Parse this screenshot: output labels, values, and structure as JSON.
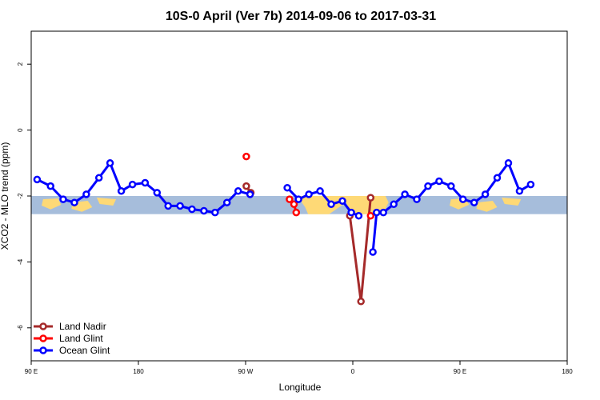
{
  "chart_data": {
    "type": "line",
    "title": "10S-0 April (Ver 7b)   2014-09-06 to 2017-03-31",
    "xlabel": "Longitude",
    "ylabel": "XCO2 - MLO trend (ppm)",
    "xlim": [
      90,
      450
    ],
    "ylim": [
      -7,
      3
    ],
    "x_ticks": [
      {
        "value": 90,
        "label": "90 E"
      },
      {
        "value": 162,
        "label": "180"
      },
      {
        "value": 234,
        "label": "90 W"
      },
      {
        "value": 306,
        "label": "0"
      },
      {
        "value": 378,
        "label": "90 E"
      },
      {
        "value": 450,
        "label": "180"
      }
    ],
    "y_ticks": [
      {
        "value": 2,
        "label": "2"
      },
      {
        "value": 0,
        "label": "0"
      },
      {
        "value": -2,
        "label": "-2"
      },
      {
        "value": -4,
        "label": "-4"
      },
      {
        "value": -6,
        "label": "-6"
      }
    ],
    "grid": false,
    "legend_position": "bottom-left",
    "map_band": {
      "y_range": [
        -2.55,
        -2.0
      ],
      "ocean_color": "#a6bddb",
      "land_color": "#fed976"
    },
    "series": [
      {
        "name": "Land Nadir",
        "color": "#a52a2a",
        "segments": [
          [
            [
              234.5,
              -1.7
            ],
            [
              237.5,
              -1.9
            ]
          ],
          [
            [
              304,
              -2.6
            ],
            [
              311.5,
              -5.2
            ],
            [
              318,
              -2.05
            ]
          ]
        ]
      },
      {
        "name": "Land Glint",
        "color": "#ff0000",
        "segments": [
          [
            [
              234.5,
              -0.8
            ]
          ],
          [
            [
              263.5,
              -2.1
            ],
            [
              266.5,
              -2.25
            ],
            [
              268,
              -2.5
            ]
          ],
          [
            [
              318,
              -2.6
            ]
          ]
        ]
      },
      {
        "name": "Ocean Glint",
        "color": "#0000ff",
        "segments": [
          [
            [
              94,
              -1.5
            ],
            [
              103,
              -1.7
            ],
            [
              111.5,
              -2.1
            ],
            [
              119,
              -2.2
            ],
            [
              127,
              -1.95
            ],
            [
              135.5,
              -1.45
            ],
            [
              143,
              -1.0
            ],
            [
              150.5,
              -1.85
            ],
            [
              158,
              -1.65
            ],
            [
              166.5,
              -1.6
            ],
            [
              174.5,
              -1.9
            ],
            [
              182,
              -2.3
            ],
            [
              190,
              -2.3
            ],
            [
              198,
              -2.4
            ],
            [
              206,
              -2.45
            ],
            [
              213.5,
              -2.5
            ],
            [
              221.5,
              -2.2
            ],
            [
              229,
              -1.85
            ],
            [
              237,
              -1.95
            ]
          ],
          [
            [
              262,
              -1.75
            ],
            [
              269.5,
              -2.1
            ],
            [
              276.5,
              -1.95
            ],
            [
              284,
              -1.85
            ],
            [
              291.5,
              -2.25
            ],
            [
              299,
              -2.15
            ],
            [
              305,
              -2.5
            ],
            [
              310,
              -2.6
            ]
          ],
          [
            [
              319.5,
              -3.7
            ],
            [
              322,
              -2.5
            ],
            [
              326.5,
              -2.5
            ],
            [
              333.5,
              -2.25
            ],
            [
              341,
              -1.95
            ],
            [
              349,
              -2.1
            ],
            [
              356.5,
              -1.7
            ],
            [
              364,
              -1.55
            ],
            [
              372,
              -1.7
            ],
            [
              380,
              -2.1
            ],
            [
              387.5,
              -2.2
            ],
            [
              395,
              -1.95
            ],
            [
              403,
              -1.45
            ],
            [
              410.5,
              -1.0
            ],
            [
              418,
              -1.85
            ],
            [
              425.5,
              -1.65
            ]
          ]
        ]
      }
    ]
  }
}
